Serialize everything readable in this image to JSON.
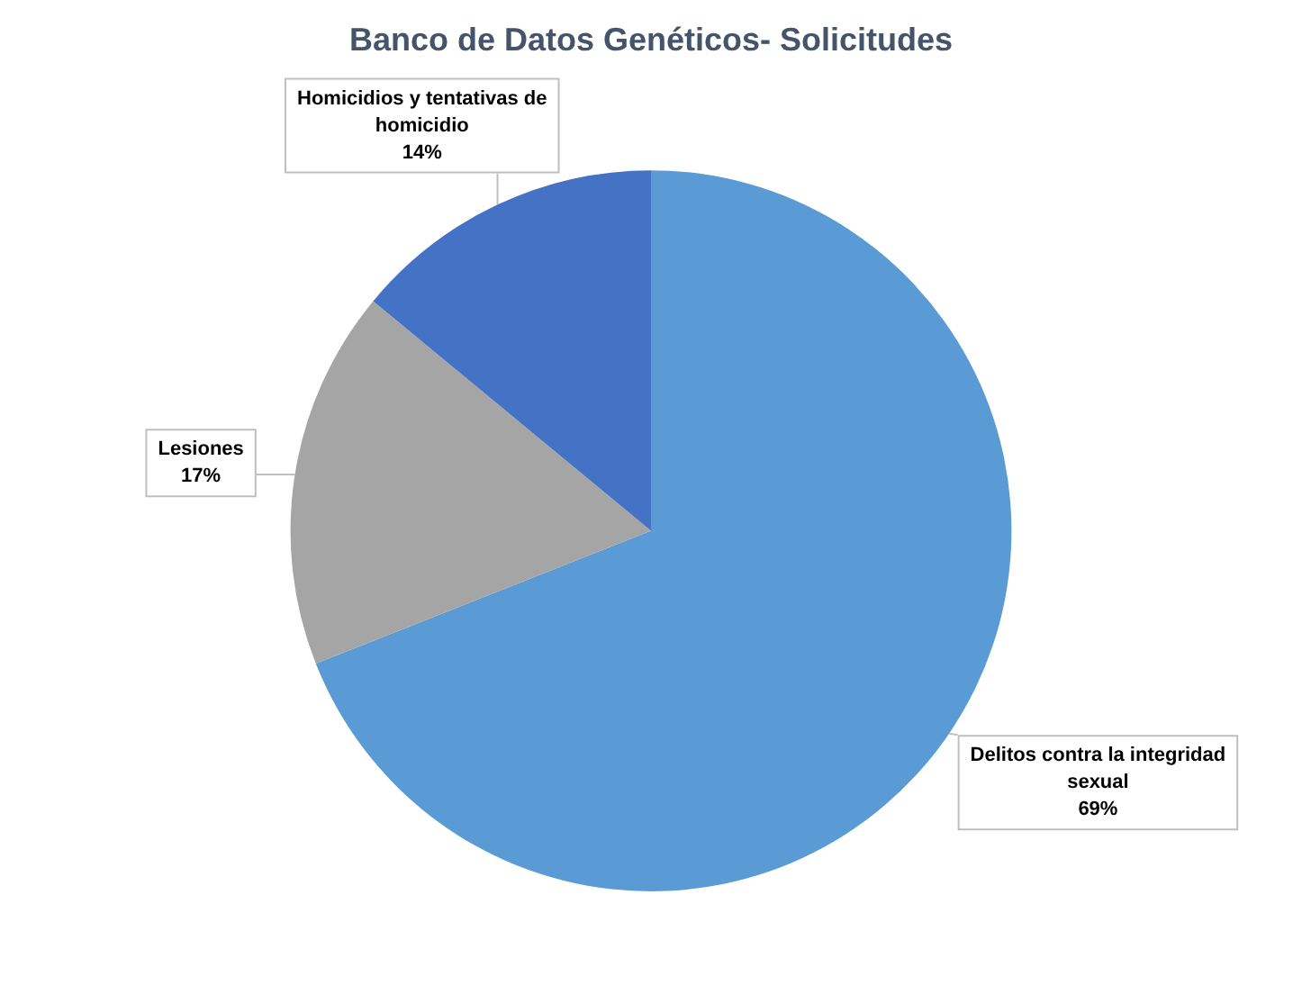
{
  "chart_data": {
    "type": "pie",
    "title": "Banco de Datos Genéticos- Solicitudes",
    "categories": [
      "Delitos contra la integridad sexual",
      "Lesiones",
      "Homicidios y tentativas de homicidio"
    ],
    "values": [
      69,
      17,
      14
    ],
    "value_labels": [
      "69%",
      "17%",
      "14%"
    ],
    "colors": [
      "#5b9bd5",
      "#a5a5a5",
      "#4472c4"
    ]
  }
}
